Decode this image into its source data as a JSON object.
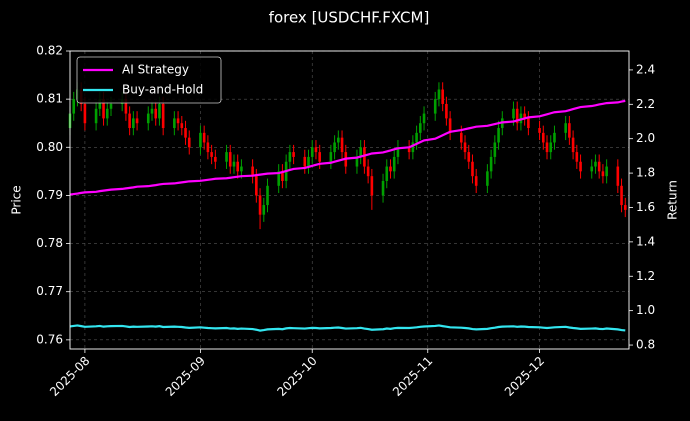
{
  "chart_data": {
    "type": "candlestick",
    "title": "forex [USDCHF.FXCM]",
    "ylabel": "Price",
    "y2label": "Return",
    "x": [
      "2025-07-28",
      "2025-07-29",
      "2025-07-30",
      "2025-07-31",
      "2025-08-01",
      "2025-08-04",
      "2025-08-05",
      "2025-08-06",
      "2025-08-07",
      "2025-08-08",
      "2025-08-11",
      "2025-08-12",
      "2025-08-13",
      "2025-08-14",
      "2025-08-15",
      "2025-08-18",
      "2025-08-19",
      "2025-08-20",
      "2025-08-21",
      "2025-08-22",
      "2025-08-25",
      "2025-08-26",
      "2025-08-27",
      "2025-08-28",
      "2025-08-29",
      "2025-09-01",
      "2025-09-02",
      "2025-09-03",
      "2025-09-04",
      "2025-09-05",
      "2025-09-08",
      "2025-09-09",
      "2025-09-10",
      "2025-09-11",
      "2025-09-12",
      "2025-09-15",
      "2025-09-16",
      "2025-09-17",
      "2025-09-18",
      "2025-09-19",
      "2025-09-22",
      "2025-09-23",
      "2025-09-24",
      "2025-09-25",
      "2025-09-26",
      "2025-09-29",
      "2025-09-30",
      "2025-10-01",
      "2025-10-02",
      "2025-10-03",
      "2025-10-06",
      "2025-10-07",
      "2025-10-08",
      "2025-10-09",
      "2025-10-10",
      "2025-10-13",
      "2025-10-14",
      "2025-10-15",
      "2025-10-16",
      "2025-10-17",
      "2025-10-20",
      "2025-10-21",
      "2025-10-22",
      "2025-10-23",
      "2025-10-24",
      "2025-10-27",
      "2025-10-28",
      "2025-10-29",
      "2025-10-30",
      "2025-10-31",
      "2025-11-03",
      "2025-11-04",
      "2025-11-05",
      "2025-11-06",
      "2025-11-07",
      "2025-11-10",
      "2025-11-11",
      "2025-11-12",
      "2025-11-13",
      "2025-11-14",
      "2025-11-17",
      "2025-11-18",
      "2025-11-19",
      "2025-11-20",
      "2025-11-21",
      "2025-11-24",
      "2025-11-25",
      "2025-11-26",
      "2025-11-27",
      "2025-11-28",
      "2025-12-01",
      "2025-12-02",
      "2025-12-03",
      "2025-12-04",
      "2025-12-05",
      "2025-12-08",
      "2025-12-09",
      "2025-12-10",
      "2025-12-11",
      "2025-12-12",
      "2025-12-15",
      "2025-12-16",
      "2025-12-17",
      "2025-12-18",
      "2025-12-19",
      "2025-12-22",
      "2025-12-23",
      "2025-12-24"
    ],
    "open": [
      0.804,
      0.807,
      0.81,
      0.812,
      0.809,
      0.805,
      0.808,
      0.81,
      0.806,
      0.808,
      0.809,
      0.81,
      0.807,
      0.804,
      0.806,
      0.805,
      0.807,
      0.808,
      0.806,
      0.809,
      0.804,
      0.806,
      0.805,
      0.804,
      0.802,
      0.8,
      0.803,
      0.801,
      0.799,
      0.798,
      0.797,
      0.799,
      0.796,
      0.797,
      0.795,
      0.796,
      0.794,
      0.79,
      0.786,
      0.788,
      0.792,
      0.795,
      0.793,
      0.797,
      0.799,
      0.798,
      0.796,
      0.798,
      0.8,
      0.799,
      0.797,
      0.799,
      0.801,
      0.802,
      0.799,
      0.796,
      0.798,
      0.8,
      0.796,
      0.794,
      0.79,
      0.793,
      0.796,
      0.795,
      0.798,
      0.8,
      0.799,
      0.801,
      0.803,
      0.805,
      0.807,
      0.81,
      0.812,
      0.809,
      0.806,
      0.803,
      0.801,
      0.799,
      0.797,
      0.794,
      0.792,
      0.795,
      0.798,
      0.801,
      0.804,
      0.806,
      0.808,
      0.805,
      0.807,
      0.806,
      0.804,
      0.803,
      0.801,
      0.799,
      0.801,
      0.803,
      0.805,
      0.802,
      0.799,
      0.797,
      0.795,
      0.796,
      0.797,
      0.795,
      0.794,
      0.796,
      0.792,
      0.788
    ],
    "high": [
      0.8085,
      0.8115,
      0.8135,
      0.8135,
      0.8105,
      0.8095,
      0.8115,
      0.8115,
      0.8095,
      0.8105,
      0.8115,
      0.8115,
      0.8085,
      0.8075,
      0.8075,
      0.8085,
      0.8095,
      0.8095,
      0.8105,
      0.8105,
      0.8075,
      0.8075,
      0.8065,
      0.8055,
      0.8035,
      0.8045,
      0.8045,
      0.8025,
      0.8005,
      0.7995,
      0.8005,
      0.8005,
      0.7985,
      0.7985,
      0.7975,
      0.7975,
      0.7955,
      0.7915,
      0.7895,
      0.7935,
      0.7965,
      0.7965,
      0.7985,
      0.8005,
      0.8005,
      0.7995,
      0.7995,
      0.8015,
      0.8015,
      0.8005,
      0.8005,
      0.8025,
      0.8035,
      0.8035,
      0.8005,
      0.7995,
      0.8015,
      0.8015,
      0.7975,
      0.7955,
      0.7945,
      0.7975,
      0.7975,
      0.7995,
      0.8015,
      0.8015,
      0.8025,
      0.8045,
      0.8065,
      0.8085,
      0.8115,
      0.8135,
      0.8135,
      0.8105,
      0.8075,
      0.8045,
      0.8025,
      0.8005,
      0.7985,
      0.7955,
      0.7965,
      0.7995,
      0.8025,
      0.8055,
      0.8075,
      0.8095,
      0.8095,
      0.8085,
      0.8085,
      0.8075,
      0.8055,
      0.8045,
      0.8025,
      0.8025,
      0.8045,
      0.8065,
      0.8065,
      0.8035,
      0.8005,
      0.7985,
      0.7975,
      0.7985,
      0.7985,
      0.7965,
      0.7975,
      0.7975,
      0.7935,
      0.7895
    ],
    "low": [
      0.8025,
      0.8055,
      0.8085,
      0.8075,
      0.8035,
      0.8035,
      0.8065,
      0.8045,
      0.8045,
      0.8065,
      0.8075,
      0.8055,
      0.8025,
      0.8025,
      0.8035,
      0.8035,
      0.8055,
      0.8045,
      0.8045,
      0.8025,
      0.8025,
      0.8035,
      0.8025,
      0.8005,
      0.7985,
      0.7985,
      0.7995,
      0.7975,
      0.7965,
      0.7955,
      0.7955,
      0.7945,
      0.7945,
      0.7935,
      0.7935,
      0.7925,
      0.7885,
      0.783,
      0.7845,
      0.7865,
      0.7905,
      0.7915,
      0.7915,
      0.7955,
      0.7965,
      0.7945,
      0.7945,
      0.7965,
      0.7975,
      0.7955,
      0.7955,
      0.7975,
      0.7995,
      0.7975,
      0.7945,
      0.7945,
      0.7965,
      0.7945,
      0.7925,
      0.787,
      0.7885,
      0.7915,
      0.7935,
      0.7935,
      0.7965,
      0.7975,
      0.7975,
      0.7995,
      0.8015,
      0.8035,
      0.8055,
      0.8085,
      0.8075,
      0.8045,
      0.8015,
      0.7995,
      0.7975,
      0.7955,
      0.7925,
      0.7905,
      0.7905,
      0.7935,
      0.7965,
      0.7995,
      0.8025,
      0.8045,
      0.8035,
      0.8035,
      0.8045,
      0.8025,
      0.8015,
      0.7995,
      0.7975,
      0.7975,
      0.7995,
      0.8015,
      0.8005,
      0.7975,
      0.7955,
      0.7935,
      0.7935,
      0.7945,
      0.7935,
      0.7925,
      0.7925,
      0.7905,
      0.7865,
      0.7855
    ],
    "close": [
      0.807,
      0.81,
      0.812,
      0.809,
      0.805,
      0.808,
      0.81,
      0.806,
      0.808,
      0.809,
      0.81,
      0.807,
      0.804,
      0.806,
      0.805,
      0.807,
      0.808,
      0.806,
      0.809,
      0.804,
      0.806,
      0.805,
      0.804,
      0.802,
      0.8,
      0.803,
      0.801,
      0.799,
      0.798,
      0.797,
      0.799,
      0.796,
      0.797,
      0.795,
      0.796,
      0.794,
      0.79,
      0.786,
      0.788,
      0.792,
      0.795,
      0.793,
      0.797,
      0.799,
      0.798,
      0.796,
      0.798,
      0.8,
      0.799,
      0.797,
      0.799,
      0.801,
      0.802,
      0.799,
      0.796,
      0.798,
      0.8,
      0.796,
      0.794,
      0.79,
      0.793,
      0.796,
      0.795,
      0.798,
      0.8,
      0.799,
      0.801,
      0.803,
      0.805,
      0.807,
      0.81,
      0.812,
      0.809,
      0.806,
      0.803,
      0.801,
      0.799,
      0.797,
      0.794,
      0.792,
      0.795,
      0.798,
      0.801,
      0.804,
      0.806,
      0.808,
      0.805,
      0.807,
      0.806,
      0.804,
      0.803,
      0.801,
      0.799,
      0.801,
      0.803,
      0.805,
      0.802,
      0.799,
      0.797,
      0.795,
      0.796,
      0.797,
      0.795,
      0.794,
      0.796,
      0.792,
      0.788,
      0.787
    ],
    "up_color": "#00a000",
    "down_color": "#ff0000",
    "series": [
      {
        "name": "AI Strategy",
        "color": "#ff00ff",
        "axis": "y2",
        "values": [
          1.675,
          1.678,
          1.681,
          1.685,
          1.688,
          1.691,
          1.695,
          1.698,
          1.701,
          1.704,
          1.708,
          1.711,
          1.714,
          1.717,
          1.721,
          1.724,
          1.727,
          1.73,
          1.734,
          1.737,
          1.74,
          1.743,
          1.746,
          1.749,
          1.752,
          1.755,
          1.758,
          1.761,
          1.764,
          1.767,
          1.77,
          1.773,
          1.776,
          1.779,
          1.782,
          1.785,
          1.788,
          1.791,
          1.794,
          1.797,
          1.8,
          1.806,
          1.812,
          1.818,
          1.824,
          1.83,
          1.836,
          1.842,
          1.848,
          1.854,
          1.86,
          1.866,
          1.872,
          1.878,
          1.884,
          1.89,
          1.896,
          1.902,
          1.908,
          1.914,
          1.92,
          1.926,
          1.932,
          1.938,
          1.944,
          1.95,
          1.96,
          1.97,
          1.98,
          1.99,
          2.0,
          2.01,
          2.02,
          2.03,
          2.04,
          2.05,
          2.055,
          2.06,
          2.065,
          2.07,
          2.075,
          2.08,
          2.085,
          2.09,
          2.095,
          2.1,
          2.106,
          2.112,
          2.118,
          2.124,
          2.13,
          2.136,
          2.142,
          2.148,
          2.154,
          2.16,
          2.166,
          2.172,
          2.178,
          2.184,
          2.19,
          2.194,
          2.199,
          2.203,
          2.207,
          2.211,
          2.216,
          2.22
        ]
      },
      {
        "name": "Buy-and-Hold",
        "color": "#33e6f0",
        "axis": "y2",
        "values": [
          0.908,
          0.911,
          0.914,
          0.91,
          0.906,
          0.909,
          0.911,
          0.907,
          0.909,
          0.91,
          0.911,
          0.908,
          0.905,
          0.907,
          0.906,
          0.908,
          0.909,
          0.907,
          0.91,
          0.905,
          0.907,
          0.906,
          0.905,
          0.902,
          0.9,
          0.903,
          0.901,
          0.899,
          0.898,
          0.897,
          0.899,
          0.896,
          0.897,
          0.894,
          0.896,
          0.893,
          0.889,
          0.884,
          0.887,
          0.891,
          0.894,
          0.892,
          0.897,
          0.899,
          0.898,
          0.896,
          0.898,
          0.9,
          0.899,
          0.897,
          0.899,
          0.901,
          0.902,
          0.899,
          0.896,
          0.898,
          0.9,
          0.896,
          0.893,
          0.889,
          0.892,
          0.896,
          0.894,
          0.898,
          0.9,
          0.899,
          0.901,
          0.903,
          0.906,
          0.908,
          0.911,
          0.914,
          0.91,
          0.907,
          0.903,
          0.901,
          0.899,
          0.897,
          0.893,
          0.891,
          0.894,
          0.898,
          0.901,
          0.905,
          0.907,
          0.909,
          0.906,
          0.908,
          0.907,
          0.905,
          0.903,
          0.901,
          0.899,
          0.901,
          0.903,
          0.906,
          0.902,
          0.899,
          0.897,
          0.894,
          0.896,
          0.897,
          0.894,
          0.893,
          0.896,
          0.891,
          0.887,
          0.885
        ]
      }
    ],
    "xlim": [
      "2025-07-28",
      "2025-12-25"
    ],
    "xticks": [
      {
        "value": "2025-08-01",
        "label": "2025-08"
      },
      {
        "value": "2025-09-01",
        "label": "2025-09"
      },
      {
        "value": "2025-10-01",
        "label": "2025-10"
      },
      {
        "value": "2025-11-01",
        "label": "2025-11"
      },
      {
        "value": "2025-12-01",
        "label": "2025-12"
      }
    ],
    "ylim": [
      0.7581,
      0.82
    ],
    "yticks": [
      0.76,
      0.77,
      0.78,
      0.79,
      {
        "value": 0.8,
        "label": "0.80"
      },
      0.81,
      0.82
    ],
    "y2lim": [
      0.777,
      2.51
    ],
    "y2ticks": [
      0.8,
      {
        "value": 1,
        "label": "1.0"
      },
      1.2,
      1.4,
      1.6,
      1.8,
      {
        "value": 2,
        "label": "2.0"
      },
      2.2,
      2.4
    ],
    "grid": true,
    "legend": "upper left"
  }
}
